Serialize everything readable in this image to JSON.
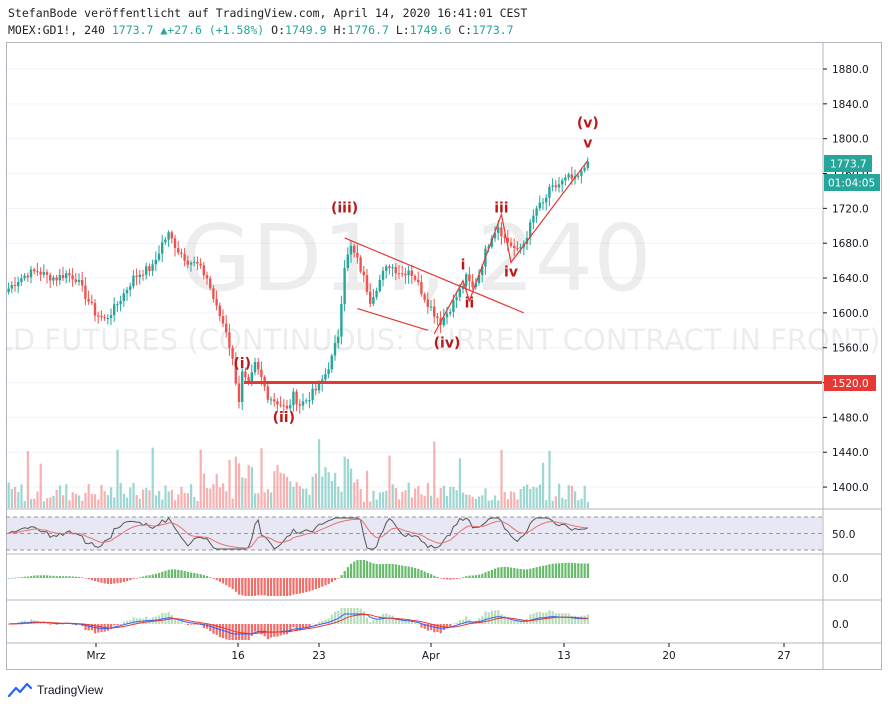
{
  "header": {
    "line1": "StefanBode veröffentlicht auf TradingView.com, April 14, 2020 16:41:01 CEST",
    "symbol_prefix": "MOEX:GD1!, 240",
    "last": "1773.7",
    "arrow": "▲",
    "change": "+27.6 (+1.58%)",
    "o_label": "O:",
    "o_val": "1749.9",
    "h_label": "H:",
    "h_val": "1776.7",
    "l_label": "L:",
    "l_val": "1749.6",
    "c_label": "C:",
    "c_val": "1773.7"
  },
  "watermark": {
    "symbol": "GD1!, 240",
    "description": "GOLD FUTURES (CONTINUOUS: CURRENT CONTRACT IN FRONT)"
  },
  "price_axis": {
    "ticks": [
      "1880.0",
      "1840.0",
      "1800.0",
      "1760.0",
      "1720.0",
      "1680.0",
      "1640.0",
      "1600.0",
      "1560.0",
      "1520.0",
      "1480.0",
      "1440.0",
      "1400.0"
    ],
    "last_price_label": "1773.7",
    "countdown_label": "01:04:05",
    "level_label": "1520.0"
  },
  "oscillator_axis": {
    "rsi_level": "50.0",
    "macd_zero": "0.0",
    "third_zero": "0.0"
  },
  "time_axis": [
    "Mrz",
    "16",
    "23",
    "Apr",
    "13",
    "20",
    "27"
  ],
  "wave_labels": [
    "(i)",
    "(ii)",
    "(iii)",
    "(iv)",
    "(v)",
    "i",
    "ii",
    "iii",
    "iv",
    "v"
  ],
  "footer": {
    "brand": "TradingView"
  },
  "colors": {
    "up": "#26a69a",
    "down": "#ef5350",
    "drawing": "#e53935",
    "wave_label": "#b71c1c",
    "rsi_band": "#e8e8f5"
  },
  "chart_data": {
    "type": "candlestick",
    "symbol": "MOEX:GD1!",
    "interval": "240",
    "ohlc_last": {
      "open": 1749.9,
      "high": 1776.7,
      "low": 1749.6,
      "close": 1773.7,
      "change": 27.6,
      "change_pct": 1.58
    },
    "ylim": [
      1380,
      1900
    ],
    "yticks": [
      1880,
      1840,
      1800,
      1760,
      1720,
      1680,
      1640,
      1600,
      1560,
      1520,
      1480,
      1440,
      1400
    ],
    "xticks": [
      "Mrz",
      "16",
      "23",
      "Apr",
      "13",
      "20",
      "27"
    ],
    "horizontal_level": 1520.0,
    "close_path": [
      [
        0,
        1628
      ],
      [
        3,
        1638
      ],
      [
        6,
        1645
      ],
      [
        9,
        1648
      ],
      [
        12,
        1642
      ],
      [
        15,
        1640
      ],
      [
        18,
        1645
      ],
      [
        21,
        1640
      ],
      [
        24,
        1620
      ],
      [
        27,
        1600
      ],
      [
        30,
        1592
      ],
      [
        33,
        1605
      ],
      [
        36,
        1622
      ],
      [
        39,
        1640
      ],
      [
        42,
        1648
      ],
      [
        45,
        1652
      ],
      [
        48,
        1680
      ],
      [
        50,
        1690
      ],
      [
        53,
        1672
      ],
      [
        56,
        1660
      ],
      [
        59,
        1655
      ],
      [
        62,
        1640
      ],
      [
        65,
        1605
      ],
      [
        68,
        1580
      ],
      [
        70,
        1545
      ],
      [
        72,
        1500
      ],
      [
        73,
        1530
      ],
      [
        75,
        1515
      ],
      [
        77,
        1540
      ],
      [
        79,
        1525
      ],
      [
        81,
        1505
      ],
      [
        83,
        1500
      ],
      [
        85,
        1495
      ],
      [
        87,
        1488
      ],
      [
        89,
        1505
      ],
      [
        91,
        1495
      ],
      [
        93,
        1500
      ],
      [
        95,
        1508
      ],
      [
        97,
        1515
      ],
      [
        99,
        1530
      ],
      [
        101,
        1548
      ],
      [
        103,
        1575
      ],
      [
        105,
        1655
      ],
      [
        107,
        1675
      ],
      [
        109,
        1660
      ],
      [
        111,
        1640
      ],
      [
        113,
        1615
      ],
      [
        115,
        1630
      ],
      [
        117,
        1645
      ],
      [
        119,
        1655
      ],
      [
        121,
        1650
      ],
      [
        123,
        1645
      ],
      [
        125,
        1650
      ],
      [
        127,
        1640
      ],
      [
        129,
        1625
      ],
      [
        131,
        1612
      ],
      [
        133,
        1600
      ],
      [
        135,
        1590
      ],
      [
        137,
        1600
      ],
      [
        139,
        1612
      ],
      [
        141,
        1625
      ],
      [
        143,
        1640
      ],
      [
        145,
        1628
      ],
      [
        147,
        1645
      ],
      [
        149,
        1670
      ],
      [
        151,
        1690
      ],
      [
        153,
        1700
      ],
      [
        155,
        1685
      ],
      [
        157,
        1678
      ],
      [
        159,
        1670
      ],
      [
        161,
        1680
      ],
      [
        163,
        1700
      ],
      [
        165,
        1720
      ],
      [
        167,
        1725
      ],
      [
        169,
        1740
      ],
      [
        171,
        1745
      ],
      [
        173,
        1750
      ],
      [
        175,
        1755
      ],
      [
        177,
        1752
      ],
      [
        179,
        1760
      ],
      [
        181,
        1774
      ]
    ],
    "annotations": [
      {
        "label": "(i)",
        "bar": 73,
        "price": 1537
      },
      {
        "label": "(ii)",
        "bar": 86,
        "price": 1475
      },
      {
        "label": "(iii)",
        "bar": 105,
        "price": 1715
      },
      {
        "label": "(iv)",
        "bar": 137,
        "price": 1560
      },
      {
        "label": "(v)",
        "bar": 181,
        "price": 1813
      },
      {
        "label": "i",
        "bar": 142,
        "price": 1650
      },
      {
        "label": "ii",
        "bar": 144,
        "price": 1606
      },
      {
        "label": "iii",
        "bar": 154,
        "price": 1715
      },
      {
        "label": "iv",
        "bar": 157,
        "price": 1642
      },
      {
        "label": "v",
        "bar": 181,
        "price": 1790
      }
    ],
    "trendlines": [
      {
        "points": [
          [
            105,
            1686
          ],
          [
            161,
            1600
          ]
        ]
      },
      {
        "points": [
          [
            109,
            1605
          ],
          [
            131,
            1580
          ]
        ]
      },
      {
        "points": [
          [
            133,
            1576
          ],
          [
            142,
            1637
          ],
          [
            144,
            1614
          ],
          [
            154,
            1713
          ],
          [
            157,
            1658
          ],
          [
            181,
            1775
          ]
        ]
      }
    ],
    "rsi": {
      "level": 50.0
    },
    "macd": {
      "zero": 0.0
    }
  }
}
